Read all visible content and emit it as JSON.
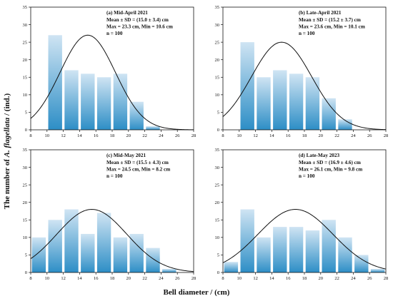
{
  "figure": {
    "ylabel_prefix": "The number of ",
    "ylabel_species": "A. flagellata",
    "ylabel_suffix": " / (ind.)",
    "xlabel": "Bell diameter / (cm)"
  },
  "colors": {
    "bar_top": "#cfe4f3",
    "bar_bottom": "#2d8ec6",
    "curve": "#111111",
    "axis": "#111111"
  },
  "chart_data": [
    {
      "type": "bar",
      "title": "(a) Mid-April 2021",
      "stats": [
        "Mean ± SD = (15.0 ± 3.4) cm",
        "Max = 23.3 cm, Min = 10.6 cm",
        "n = 100"
      ],
      "categories": [
        "11",
        "13",
        "15",
        "17",
        "19",
        "21",
        "23",
        "25",
        "27"
      ],
      "values": [
        27,
        17,
        16,
        15,
        16,
        8,
        1,
        0,
        0
      ],
      "curve": {
        "mean": 15.0,
        "sd": 3.4,
        "peak": 27
      },
      "xlim": [
        8,
        28
      ],
      "ylim": [
        0,
        35
      ],
      "xticks": [
        "8",
        "10",
        "12",
        "14",
        "16",
        "18",
        "20",
        "22",
        "24",
        "26",
        "28"
      ],
      "yticks": [
        "0",
        "5",
        "10",
        "15",
        "20",
        "25",
        "30",
        "35"
      ]
    },
    {
      "type": "bar",
      "title": "(b) Late-April 2021",
      "stats": [
        "Mean ± SD = (15.2 ± 3.7) cm",
        "Max = 23.6 cm, Min = 10.1 cm",
        "n = 100"
      ],
      "categories": [
        "11",
        "13",
        "15",
        "17",
        "19",
        "21",
        "23",
        "25",
        "27"
      ],
      "values": [
        25,
        15,
        17,
        16,
        15,
        9,
        3,
        0,
        0
      ],
      "curve": {
        "mean": 15.2,
        "sd": 3.7,
        "peak": 25
      },
      "xlim": [
        8,
        28
      ],
      "ylim": [
        0,
        35
      ],
      "xticks": [
        "8",
        "10",
        "12",
        "14",
        "16",
        "18",
        "20",
        "22",
        "24",
        "26",
        "28"
      ],
      "yticks": [
        "0",
        "5",
        "10",
        "15",
        "20",
        "25",
        "30",
        "35"
      ]
    },
    {
      "type": "bar",
      "title": "(c) Mid-May 2021",
      "stats": [
        "Mean ± SD = (15.5 ± 4.3) cm",
        "Max = 24.5 cm, Min = 8.2 cm",
        "n = 100"
      ],
      "categories": [
        "9",
        "11",
        "13",
        "15",
        "17",
        "19",
        "21",
        "23",
        "25",
        "27"
      ],
      "values": [
        10,
        15,
        18,
        11,
        17,
        10,
        11,
        7,
        1,
        0
      ],
      "curve": {
        "mean": 15.5,
        "sd": 4.3,
        "peak": 18
      },
      "xlim": [
        8,
        28
      ],
      "ylim": [
        0,
        35
      ],
      "xticks": [
        "8",
        "10",
        "12",
        "14",
        "16",
        "18",
        "20",
        "22",
        "24",
        "26",
        "28"
      ],
      "yticks": [
        "0",
        "5",
        "10",
        "15",
        "20",
        "25",
        "30",
        "35"
      ]
    },
    {
      "type": "bar",
      "title": "(d) Late-May 2023",
      "stats": [
        "Mean ± SD = (16.9 ± 4.6) cm",
        "Max = 26.1 cm, Min = 9.8 cm",
        "n = 100"
      ],
      "categories": [
        "9",
        "11",
        "13",
        "15",
        "17",
        "19",
        "21",
        "23",
        "25",
        "27"
      ],
      "values": [
        3,
        18,
        10,
        13,
        13,
        12,
        15,
        10,
        5,
        1
      ],
      "curve": {
        "mean": 16.9,
        "sd": 4.6,
        "peak": 18
      },
      "xlim": [
        8,
        28
      ],
      "ylim": [
        0,
        35
      ],
      "xticks": [
        "8",
        "10",
        "12",
        "14",
        "16",
        "18",
        "20",
        "22",
        "24",
        "26",
        "28"
      ],
      "yticks": [
        "0",
        "5",
        "10",
        "15",
        "20",
        "25",
        "30",
        "35"
      ]
    }
  ]
}
